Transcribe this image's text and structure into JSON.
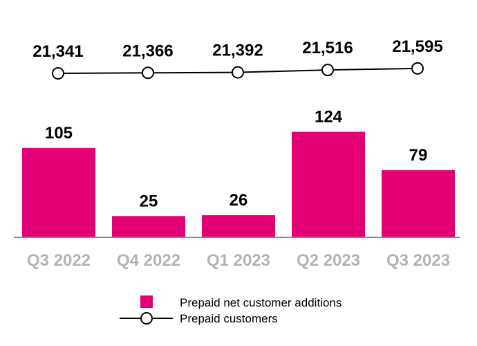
{
  "chart_data": {
    "type": "bar+line",
    "categories": [
      "Q3 2022",
      "Q4 2022",
      "Q1 2023",
      "Q2 2023",
      "Q3 2023"
    ],
    "series": [
      {
        "name": "Prepaid net customer additions",
        "type": "bar",
        "values": [
          105,
          25,
          26,
          124,
          79
        ],
        "color": "#E20074"
      },
      {
        "name": "Prepaid customers",
        "type": "line",
        "values": [
          21341,
          21366,
          21392,
          21516,
          21595
        ],
        "labels": [
          "21,341",
          "21,366",
          "21,392",
          "21,516",
          "21,595"
        ],
        "color": "#000000"
      }
    ],
    "legend": "bottom-center",
    "grid": false
  }
}
